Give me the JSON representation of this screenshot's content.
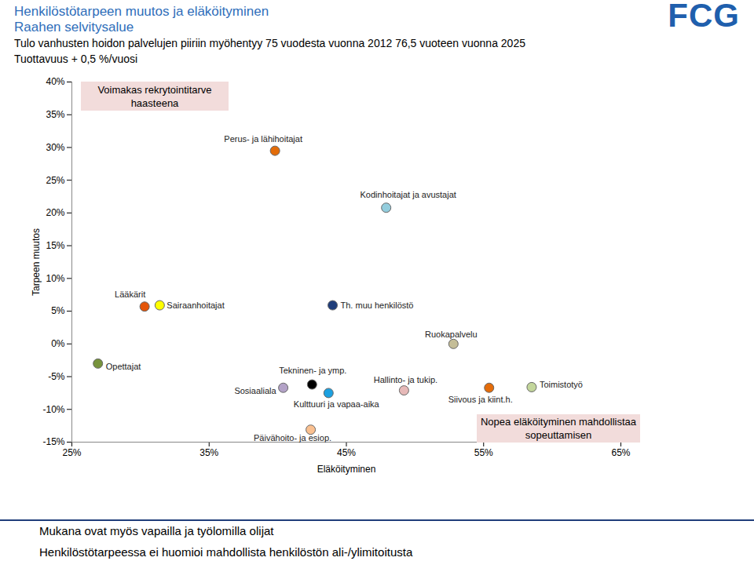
{
  "header": {
    "logo": "FCG",
    "lines": [
      "Tulo vanhusten hoidon palvelujen piiriin myöhentyy 75 vuodesta vuonna 2012 76,5 vuoteen vuonna 2025",
      "Tuottavuus + 0,5 %/vuosi"
    ]
  },
  "chart_data": {
    "type": "scatter",
    "title": "Henkilöstötarpeen muutos ja eläköityminen",
    "subtitle": "Raahen selvitysalue",
    "x_label": "Eläköityminen",
    "y_label": "Tarpeen muutos",
    "xlim": [
      25,
      65
    ],
    "xticks": [
      {
        "value": 25,
        "label": "25%"
      },
      {
        "value": 35,
        "label": "35%"
      },
      {
        "value": 45,
        "label": "45%"
      },
      {
        "value": 55,
        "label": "55%"
      },
      {
        "value": 65,
        "label": "65%"
      }
    ],
    "ylim": [
      -15,
      40
    ],
    "yticks": [
      {
        "value": -15,
        "label": "-15%"
      },
      {
        "value": -10,
        "label": "-10%"
      },
      {
        "value": -5,
        "label": "-5%"
      },
      {
        "value": 0,
        "label": "0%"
      },
      {
        "value": 5,
        "label": "5%"
      },
      {
        "value": 10,
        "label": "10%"
      },
      {
        "value": 15,
        "label": "15%"
      },
      {
        "value": 20,
        "label": "20%"
      },
      {
        "value": 25,
        "label": "25%"
      },
      {
        "value": 30,
        "label": "30%"
      },
      {
        "value": 35,
        "label": "35%"
      },
      {
        "value": 40,
        "label": "40%"
      }
    ],
    "grid": false,
    "points": [
      {
        "label": "Perus- ja lähihoitajat",
        "x": 39.8,
        "y": 29.5,
        "color": "#E36C09"
      },
      {
        "label": "Kodinhoitajat ja avustajat",
        "x": 47.9,
        "y": 20.8,
        "color": "#93CDDD"
      },
      {
        "label": "Lääkärit",
        "x": 30.3,
        "y": 5.7,
        "color": "#E4560A"
      },
      {
        "label": "Sairaanhoitajat",
        "x": 31.4,
        "y": 5.9,
        "color": "#FFFF00"
      },
      {
        "label": "Th. muu henkilöstö",
        "x": 44.0,
        "y": 5.9,
        "color": "#1F3D7A"
      },
      {
        "label": "Ruokapalvelu",
        "x": 52.8,
        "y": 0,
        "color": "#C4BD97"
      },
      {
        "label": "Opettajat",
        "x": 26.9,
        "y": -3.0,
        "color": "#77933C"
      },
      {
        "label": "Sosiaaliala",
        "x": 40.4,
        "y": -6.7,
        "color": "#B3A2C7"
      },
      {
        "label": "Tekninen- ja ymp.",
        "x": 42.5,
        "y": -6.2,
        "color": "#000000"
      },
      {
        "label": "Kulttuuri ja vapaa-aika",
        "x": 43.7,
        "y": -7.5,
        "color": "#1CA0E0"
      },
      {
        "label": "Hallinto- ja tukip.",
        "x": 49.2,
        "y": -7.1,
        "color": "#E6B9B8"
      },
      {
        "label": "Siivous ja kiint.h.",
        "x": 55.4,
        "y": -6.7,
        "color": "#E46C0A"
      },
      {
        "label": "Toimistotyö",
        "x": 58.5,
        "y": -6.6,
        "color": "#C3D69B"
      },
      {
        "label": "Päivähoito- ja esiop.",
        "x": 42.4,
        "y": -13.1,
        "color": "#FAC090"
      }
    ],
    "annotations": [
      "Voimakas rekrytointitarve haasteena",
      "Nopea eläköityminen mahdollistaa sopeuttamisen"
    ]
  },
  "footer": [
    "Mukana ovat myös vapailla ja työlomilla olijat",
    "Henkilöstötarpeessa ei huomioi mahdollista henkilöstön ali-/ylimitoitusta"
  ]
}
